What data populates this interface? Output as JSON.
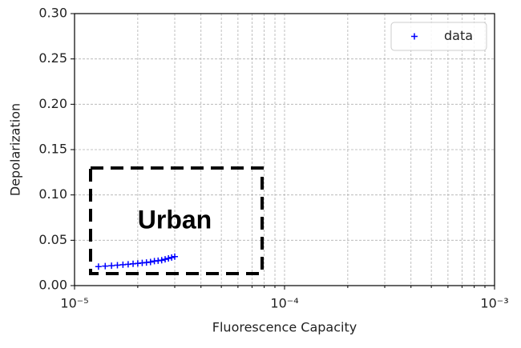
{
  "chart_data": {
    "type": "scatter",
    "xlabel": "Fluorescence Capacity",
    "ylabel": "Depolarization",
    "xscale": "log",
    "grid": true,
    "legend": "upper right",
    "xlim": [
      1e-05,
      0.001
    ],
    "xticks": [
      {
        "value": 1e-05,
        "label": "10⁻⁵"
      },
      {
        "value": 0.0001,
        "label": "10⁻⁴"
      },
      {
        "value": 0.001,
        "label": "10⁻³"
      }
    ],
    "xminorticks": [
      2e-05,
      3e-05,
      4e-05,
      5e-05,
      6e-05,
      7e-05,
      8e-05,
      9e-05,
      0.0002,
      0.0003,
      0.0004,
      0.0005,
      0.0006,
      0.0007,
      0.0008,
      0.0009
    ],
    "ylim": [
      0,
      0.3
    ],
    "yticks": [
      {
        "value": 0,
        "label": "0.00"
      },
      {
        "value": 0.05,
        "label": "0.05"
      },
      {
        "value": 0.1,
        "label": "0.10"
      },
      {
        "value": 0.15,
        "label": "0.15"
      },
      {
        "value": 0.2,
        "label": "0.20"
      },
      {
        "value": 0.25,
        "label": "0.25"
      },
      {
        "value": 0.3,
        "label": "0.30"
      }
    ],
    "annotation": "Urban",
    "series": [
      {
        "name": "data",
        "color": "#0000ff",
        "marker": "+",
        "x": [
          1.3e-05,
          1.4e-05,
          1.5e-05,
          1.6e-05,
          1.7e-05,
          1.8e-05,
          1.9e-05,
          2e-05,
          2.1e-05,
          2.2e-05,
          2.3e-05,
          2.4e-05,
          2.5e-05,
          2.6e-05,
          2.7e-05,
          2.8e-05,
          2.9e-05,
          3e-05
        ],
        "values": [
          0.021,
          0.0215,
          0.022,
          0.0225,
          0.023,
          0.0235,
          0.024,
          0.0245,
          0.025,
          0.0255,
          0.026,
          0.027,
          0.0275,
          0.028,
          0.029,
          0.03,
          0.031,
          0.032
        ]
      }
    ]
  }
}
